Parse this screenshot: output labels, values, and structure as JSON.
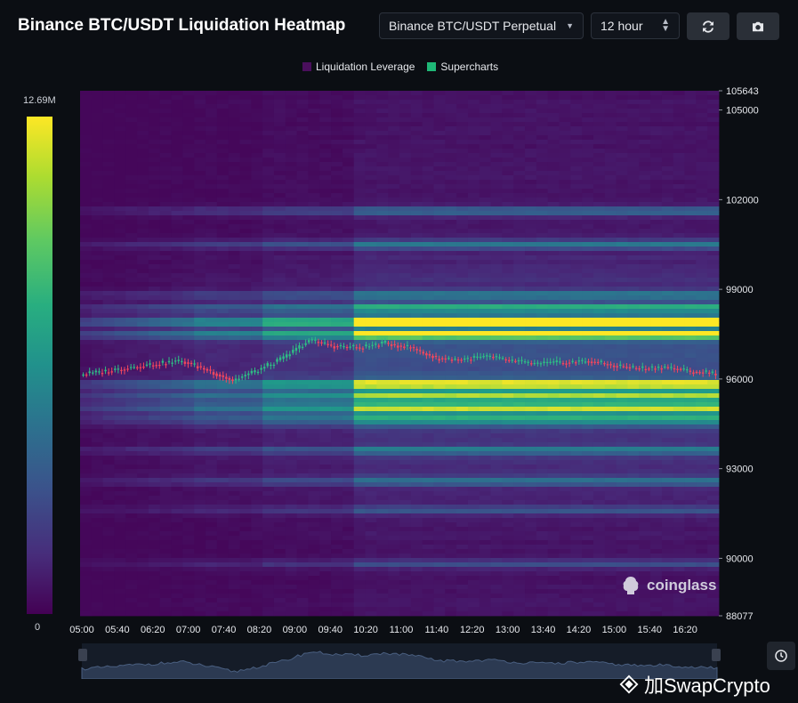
{
  "header": {
    "title": "Binance BTC/USDT Liquidation Heatmap",
    "pair_select": "Binance BTC/USDT Perpetual",
    "range_select": "12 hour",
    "refresh_icon": "refresh-icon",
    "camera_icon": "camera-icon"
  },
  "legend": [
    {
      "label": "Liquidation Leverage",
      "color": "#4a0f5c"
    },
    {
      "label": "Supercharts",
      "color": "#1fb877"
    }
  ],
  "colorbar": {
    "max_label": "12.69M",
    "min_label": "0"
  },
  "watermark": "coinglass",
  "footer": "加SwapCrypto",
  "chart_data": {
    "type": "heatmap",
    "title": "Binance BTC/USDT Liquidation Heatmap",
    "x_ticks": [
      "05:00",
      "05:40",
      "06:20",
      "07:00",
      "07:40",
      "08:20",
      "09:00",
      "09:40",
      "10:20",
      "11:00",
      "11:40",
      "12:20",
      "13:00",
      "13:40",
      "14:20",
      "15:00",
      "15:40",
      "16:20"
    ],
    "y_ticks": [
      105643,
      105000,
      102000,
      99000,
      96000,
      93000,
      90000,
      88077
    ],
    "ylim": [
      88077,
      105643
    ],
    "color_scale": {
      "min": 0,
      "max": 12690000,
      "palette": "viridis"
    },
    "price_series": {
      "name": "BTC/USDT",
      "close": [
        96150,
        96250,
        96400,
        96500,
        96600,
        96300,
        95950,
        96300,
        96700,
        97300,
        97100,
        97050,
        97200,
        97050,
        96700,
        96650,
        96750,
        96600,
        96500,
        96550,
        96600,
        96450,
        96350,
        96400,
        96250,
        96200
      ]
    },
    "liquidation_bands": [
      {
        "price": 97900,
        "intensity": 0.98
      },
      {
        "price": 97500,
        "intensity": 0.75
      },
      {
        "price": 95850,
        "intensity": 0.82
      },
      {
        "price": 95450,
        "intensity": 0.7
      },
      {
        "price": 95050,
        "intensity": 0.6
      },
      {
        "price": 94700,
        "intensity": 0.5
      },
      {
        "price": 98400,
        "intensity": 0.55
      },
      {
        "price": 98800,
        "intensity": 0.45
      },
      {
        "price": 100500,
        "intensity": 0.4
      },
      {
        "price": 101600,
        "intensity": 0.38
      },
      {
        "price": 93600,
        "intensity": 0.4
      },
      {
        "price": 92600,
        "intensity": 0.4
      },
      {
        "price": 91600,
        "intensity": 0.3
      },
      {
        "price": 89800,
        "intensity": 0.22
      }
    ]
  }
}
